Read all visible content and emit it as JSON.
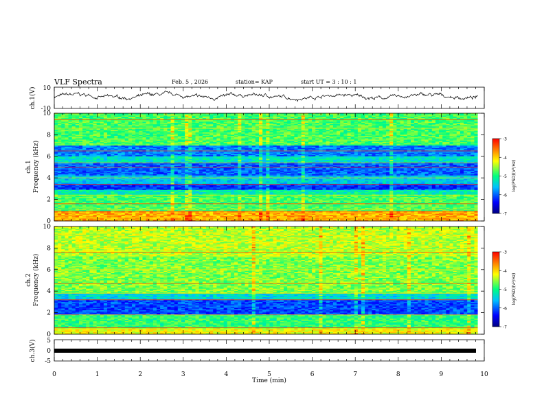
{
  "header": {
    "title": "VLF Spectra",
    "date": "Feb. 5 , 2026",
    "station": "station= KAP",
    "start": "start UT =  3 : 10 : 1"
  },
  "chart_data": [
    {
      "type": "line",
      "panel": "ch1-waveform",
      "ylabel": "ch.1(V)",
      "ylim": [
        -10,
        10
      ],
      "ytick_labels": [
        "10",
        "-10"
      ],
      "xlim": [
        0,
        9.85
      ],
      "description_values": {
        "baseline_v": 0,
        "typical_range_v": [
          -2,
          4
        ]
      }
    },
    {
      "type": "heatmap",
      "panel": "ch1-spectrogram",
      "ylabel": "ch.1\nFrequency (kHz)",
      "ylabel_lines": [
        "ch.1",
        "Frequency (kHz)"
      ],
      "ylim": [
        0,
        10
      ],
      "ytick_labels": [
        "0",
        "2",
        "4",
        "6",
        "8",
        "10"
      ],
      "xlim": [
        0,
        9.85
      ],
      "colorbar": {
        "label": "log(PSD)(V²/Hz)",
        "range": [
          -7,
          -3
        ],
        "tick_labels": [
          "-3",
          "-4",
          "-5",
          "-6",
          "-7"
        ]
      },
      "bands_khz": [
        {
          "lo": 0.0,
          "hi": 0.9,
          "level": -3.8
        },
        {
          "lo": 0.9,
          "hi": 2.4,
          "level": -4.8
        },
        {
          "lo": 2.4,
          "hi": 2.9,
          "level": -5.2
        },
        {
          "lo": 2.9,
          "hi": 3.4,
          "level": -6.2
        },
        {
          "lo": 3.4,
          "hi": 4.2,
          "level": -5.5
        },
        {
          "lo": 4.2,
          "hi": 5.4,
          "level": -6.0
        },
        {
          "lo": 5.4,
          "hi": 6.0,
          "level": -5.3
        },
        {
          "lo": 6.0,
          "hi": 7.0,
          "level": -5.9
        },
        {
          "lo": 7.0,
          "hi": 10.0,
          "level": -4.8
        }
      ],
      "lines_khz": [
        0.3,
        0.9,
        1.1,
        1.6,
        2.4,
        3.4,
        4.0,
        5.0,
        5.4,
        6.5,
        8.6,
        9.4
      ]
    },
    {
      "type": "heatmap",
      "panel": "ch2-spectrogram",
      "ylabel": "ch.2\nFrequency (kHz)",
      "ylabel_lines": [
        "ch.2",
        "Frequency (kHz)"
      ],
      "ylim": [
        0,
        10
      ],
      "ytick_labels": [
        "0",
        "2",
        "4",
        "6",
        "8",
        "10"
      ],
      "xlim": [
        0,
        9.85
      ],
      "colorbar": {
        "label": "log(PSD)(V²/Hz)",
        "range": [
          -7,
          -3
        ],
        "tick_labels": [
          "-3",
          "-4",
          "-5",
          "-6",
          "-7"
        ]
      },
      "bands_khz": [
        {
          "lo": 0.0,
          "hi": 0.6,
          "level": -4.2
        },
        {
          "lo": 0.6,
          "hi": 1.8,
          "level": -4.9
        },
        {
          "lo": 1.8,
          "hi": 3.2,
          "level": -6.1
        },
        {
          "lo": 3.2,
          "hi": 3.8,
          "level": -5.4
        },
        {
          "lo": 3.8,
          "hi": 7.2,
          "level": -4.6
        },
        {
          "lo": 7.2,
          "hi": 10.0,
          "level": -4.4
        }
      ],
      "lines_khz": [
        0.2,
        0.6,
        1.8,
        3.2,
        3.8,
        4.7,
        6.0,
        7.6,
        9.2
      ]
    },
    {
      "type": "line",
      "panel": "ch3-waveform",
      "ylabel": "ch.3(V)",
      "ylim": [
        -5,
        5
      ],
      "ytick_labels": [
        "5",
        "0",
        "-5"
      ],
      "xlim": [
        0,
        9.85
      ],
      "description_values": {
        "baseline_v": 0
      }
    }
  ],
  "x_axis": {
    "xlabel": "Time (min)",
    "range": [
      0,
      10
    ],
    "tick_labels": [
      "0",
      "1",
      "2",
      "3",
      "4",
      "5",
      "6",
      "7",
      "8",
      "9",
      "10"
    ]
  },
  "colors": {
    "colormap": [
      "#000080",
      "#0000ff",
      "#00c0ff",
      "#00ff80",
      "#ffff00",
      "#ff8000",
      "#ff0000"
    ],
    "trace": "#000000"
  }
}
